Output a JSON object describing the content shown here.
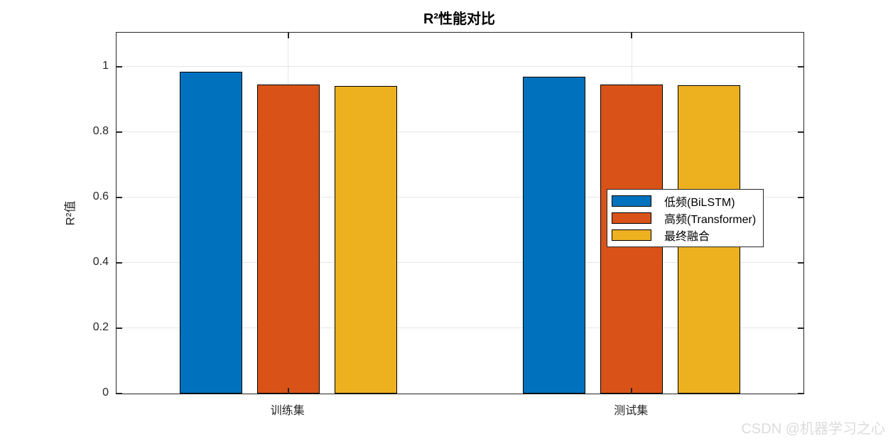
{
  "watermark": "CSDN @机器学习之心",
  "chart_data": {
    "type": "bar",
    "title": "R²性能对比",
    "xlabel": "",
    "ylabel": "R²值",
    "categories": [
      "训练集",
      "测试集"
    ],
    "series": [
      {
        "name": "低频(BiLSTM)",
        "color": "#0072BD",
        "values": [
          0.985,
          0.97
        ]
      },
      {
        "name": "高频(Transformer)",
        "color": "#D95319",
        "values": [
          0.946,
          0.945
        ]
      },
      {
        "name": "最终融合",
        "color": "#EDB120",
        "values": [
          0.941,
          0.943
        ]
      }
    ],
    "ylim": [
      0,
      1.104
    ],
    "yticks": [
      0,
      0.2,
      0.4,
      0.6,
      0.8,
      1
    ],
    "grid": true,
    "legend_position": "middle-right",
    "style": {
      "bar_edge_color": "#000000",
      "grid_color": "#E6E6E6",
      "axis_color": "#262626",
      "watermark_color": "#DCDCDC"
    }
  }
}
